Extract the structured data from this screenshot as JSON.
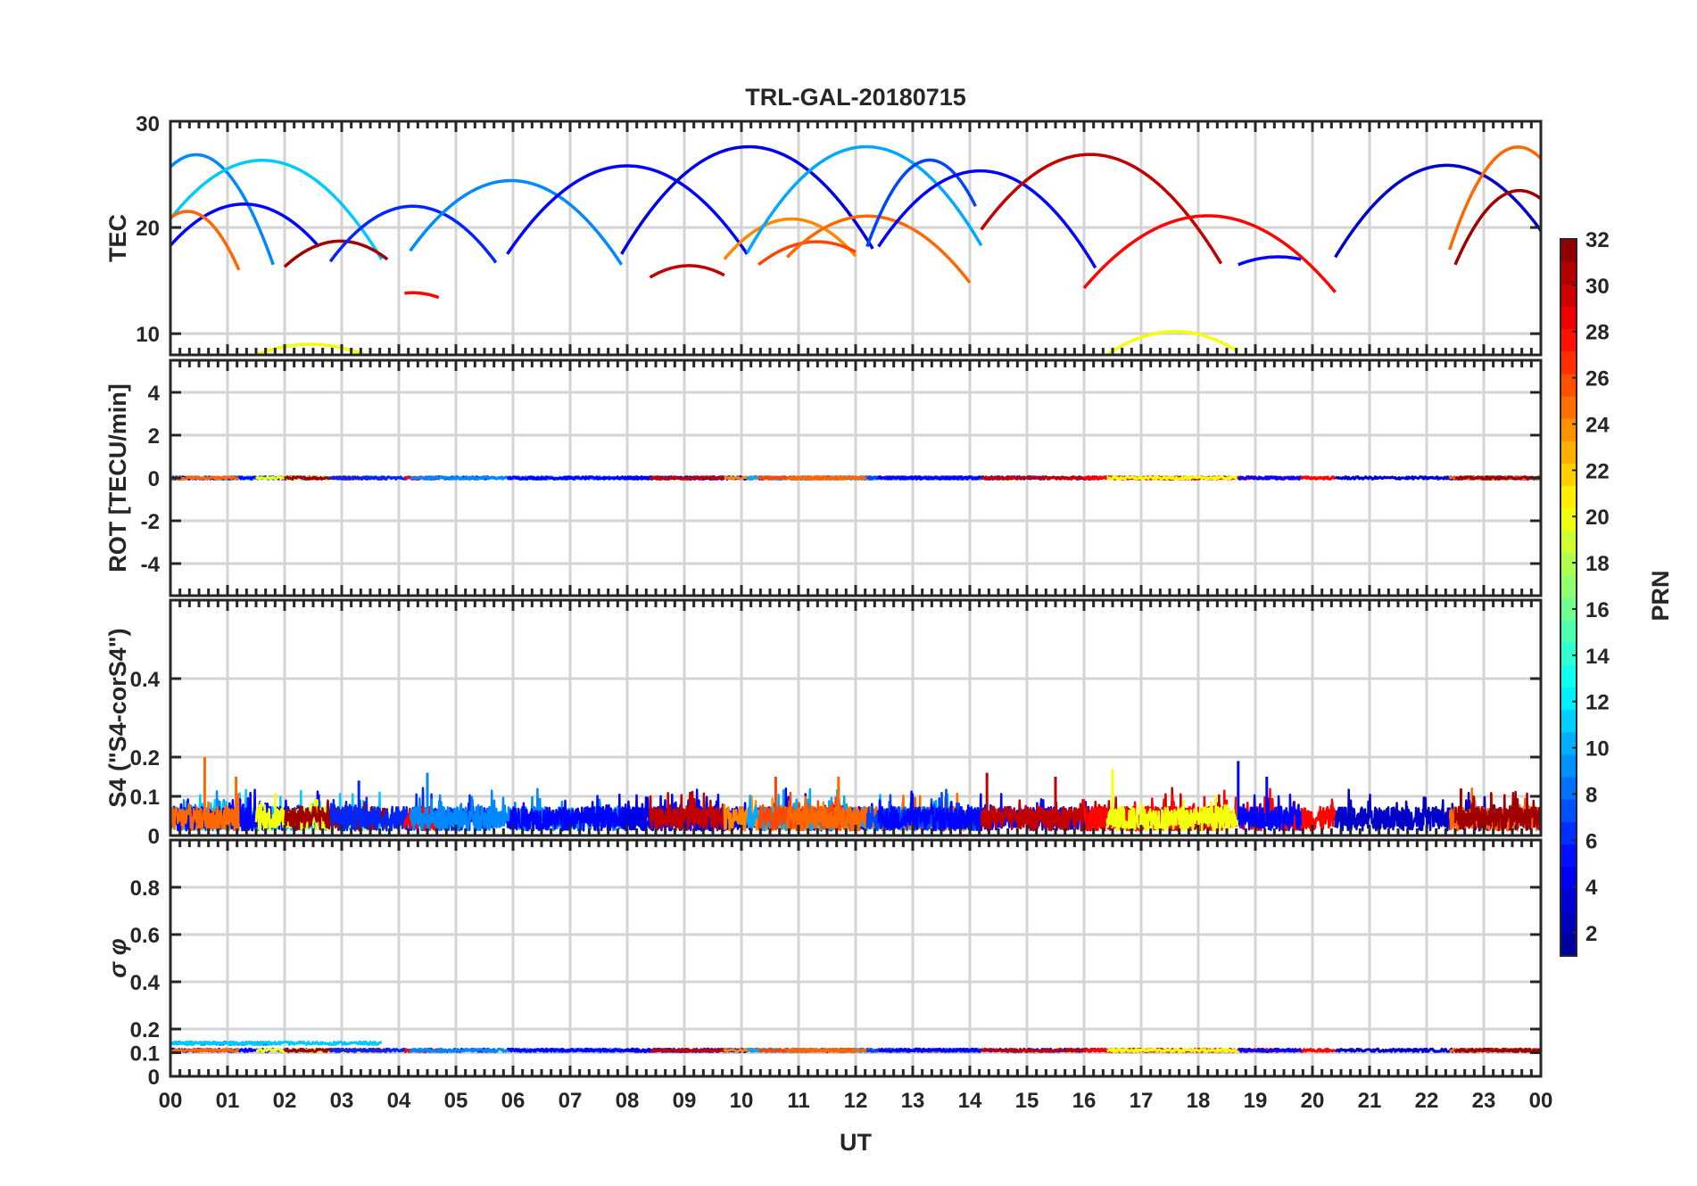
{
  "chart_data": {
    "type": "line",
    "title": "TRL-GAL-20180715",
    "xlabel": "UT",
    "x_ticks": [
      "00",
      "01",
      "02",
      "03",
      "04",
      "05",
      "06",
      "07",
      "08",
      "09",
      "10",
      "11",
      "12",
      "13",
      "14",
      "15",
      "16",
      "17",
      "18",
      "19",
      "20",
      "21",
      "22",
      "23",
      "00"
    ],
    "xlim": [
      0,
      24
    ],
    "colorbar": {
      "label": "PRN",
      "range": [
        1,
        32
      ],
      "ticks": [
        "2",
        "4",
        "6",
        "8",
        "10",
        "12",
        "14",
        "16",
        "18",
        "20",
        "22",
        "24",
        "26",
        "28",
        "30",
        "32"
      ],
      "colormap": [
        "#00008f",
        "#0000ff",
        "#0080ff",
        "#00ffff",
        "#80ff80",
        "#ffff00",
        "#ff8000",
        "#ff0000",
        "#800000"
      ]
    },
    "panels": [
      {
        "name": "tec",
        "ylabel": "TEC",
        "ylim": [
          8,
          30
        ],
        "yticks": [
          10,
          20,
          30
        ],
        "tick_labels": [
          "10",
          "20",
          "30"
        ],
        "arcs": [
          {
            "prn": 9,
            "t0": 0.0,
            "t1": 1.8,
            "y0": 25.7,
            "peak": 25.7,
            "y1": 16.5
          },
          {
            "prn": 11,
            "t0": 0.0,
            "t1": 3.7,
            "y0": 20.8,
            "peak": 26.2,
            "y1": 17.0
          },
          {
            "prn": 5,
            "t0": 0.0,
            "t1": 2.6,
            "y0": 18.3,
            "peak": 22.2,
            "y1": 18.2
          },
          {
            "prn": 25,
            "t0": 0.0,
            "t1": 1.2,
            "y0": 20.9,
            "peak": 20.9,
            "y1": 16.0
          },
          {
            "prn": 20,
            "t0": 1.5,
            "t1": 3.4,
            "y0": 8.0,
            "peak": 9.0,
            "y1": 8.0
          },
          {
            "prn": 31,
            "t0": 2.0,
            "t1": 3.8,
            "y0": 16.3,
            "peak": 18.7,
            "y1": 17.0
          },
          {
            "prn": 6,
            "t0": 2.8,
            "t1": 5.7,
            "y0": 16.8,
            "peak": 22.0,
            "y1": 16.7
          },
          {
            "prn": 28,
            "t0": 4.1,
            "t1": 4.7,
            "y0": 13.8,
            "peak": 13.8,
            "y1": 13.4
          },
          {
            "prn": 9,
            "t0": 4.2,
            "t1": 7.9,
            "y0": 17.8,
            "peak": 24.4,
            "y1": 16.5
          },
          {
            "prn": 5,
            "t0": 5.9,
            "t1": 10.1,
            "y0": 17.5,
            "peak": 25.8,
            "y1": 17.5
          },
          {
            "prn": 4,
            "t0": 7.9,
            "t1": 12.3,
            "y0": 17.5,
            "peak": 27.6,
            "y1": 18.0
          },
          {
            "prn": 30,
            "t0": 8.4,
            "t1": 9.7,
            "y0": 15.3,
            "peak": 16.4,
            "y1": 15.5
          },
          {
            "prn": 24,
            "t0": 9.7,
            "t1": 12.0,
            "y0": 17.0,
            "peak": 20.8,
            "y1": 17.3
          },
          {
            "prn": 10,
            "t0": 10.1,
            "t1": 14.2,
            "y0": 17.6,
            "peak": 27.6,
            "y1": 18.3
          },
          {
            "prn": 26,
            "t0": 10.3,
            "t1": 12.0,
            "y0": 16.5,
            "peak": 18.6,
            "y1": 17.7
          },
          {
            "prn": 25,
            "t0": 10.8,
            "t1": 14.0,
            "y0": 17.2,
            "peak": 21.0,
            "y1": 14.8
          },
          {
            "prn": 7,
            "t0": 12.2,
            "t1": 14.1,
            "y0": 18.2,
            "peak": 26.2,
            "y1": 22.0
          },
          {
            "prn": 5,
            "t0": 12.4,
            "t1": 16.2,
            "y0": 18.2,
            "peak": 25.3,
            "y1": 16.2
          },
          {
            "prn": 30,
            "t0": 14.2,
            "t1": 18.4,
            "y0": 19.8,
            "peak": 26.8,
            "y1": 16.6
          },
          {
            "prn": 28,
            "t0": 16.0,
            "t1": 20.4,
            "y0": 14.3,
            "peak": 21.1,
            "y1": 13.9
          },
          {
            "prn": 20,
            "t0": 16.4,
            "t1": 18.7,
            "y0": 8.0,
            "peak": 10.2,
            "y1": 8.3
          },
          {
            "prn": 5,
            "t0": 18.7,
            "t1": 19.8,
            "y0": 16.5,
            "peak": 17.2,
            "y1": 17.0
          },
          {
            "prn": 3,
            "t0": 20.4,
            "t1": 24.0,
            "y0": 17.2,
            "peak": 25.8,
            "y1": 19.7
          },
          {
            "prn": 25,
            "t0": 22.4,
            "t1": 24.0,
            "y0": 17.9,
            "peak": 26.5,
            "y1": 26.5
          },
          {
            "prn": 31,
            "t0": 22.5,
            "t1": 24.0,
            "y0": 16.5,
            "peak": 22.7,
            "y1": 22.7
          }
        ]
      },
      {
        "name": "rot",
        "ylabel": "ROT [TECU/min]",
        "ylim": [
          -5.5,
          5.5
        ],
        "yticks": [
          -4,
          -2,
          0,
          2,
          4
        ],
        "tick_labels": [
          "-4",
          "-2",
          "0",
          "2",
          "4"
        ],
        "baseline": 0,
        "amplitude": 0.06
      },
      {
        "name": "s4",
        "ylabel": "S4 (\"S4-corS4\")",
        "ylim": [
          0,
          0.6
        ],
        "yticks": [
          0,
          0.1,
          0.2,
          0.4
        ],
        "tick_labels": [
          "0",
          "0.1",
          "0.2",
          "0.4"
        ],
        "baseline": 0.04,
        "amplitude": 0.03,
        "spikes": [
          {
            "t": 0.6,
            "y": 0.2
          },
          {
            "t": 1.15,
            "y": 0.15
          },
          {
            "t": 3.3,
            "y": 0.14
          },
          {
            "t": 4.5,
            "y": 0.16
          },
          {
            "t": 10.6,
            "y": 0.15
          },
          {
            "t": 11.7,
            "y": 0.15
          },
          {
            "t": 14.3,
            "y": 0.16
          },
          {
            "t": 15.5,
            "y": 0.15
          },
          {
            "t": 16.5,
            "y": 0.17
          },
          {
            "t": 18.7,
            "y": 0.19
          },
          {
            "t": 19.2,
            "y": 0.15
          },
          {
            "t": 22.6,
            "y": 0.12
          }
        ]
      },
      {
        "name": "sigma-phi",
        "ylabel": "σ φ",
        "ylim": [
          0,
          1.0
        ],
        "yticks": [
          0,
          0.1,
          0.2,
          0.4,
          0.6,
          0.8
        ],
        "tick_labels": [
          "0",
          "0.1",
          "0.2",
          "0.4",
          "0.6",
          "0.8"
        ],
        "baseline": 0.11,
        "amplitude": 0.006,
        "elevated": {
          "t0": 0.0,
          "t1": 4.0,
          "y": 0.14
        }
      }
    ]
  }
}
